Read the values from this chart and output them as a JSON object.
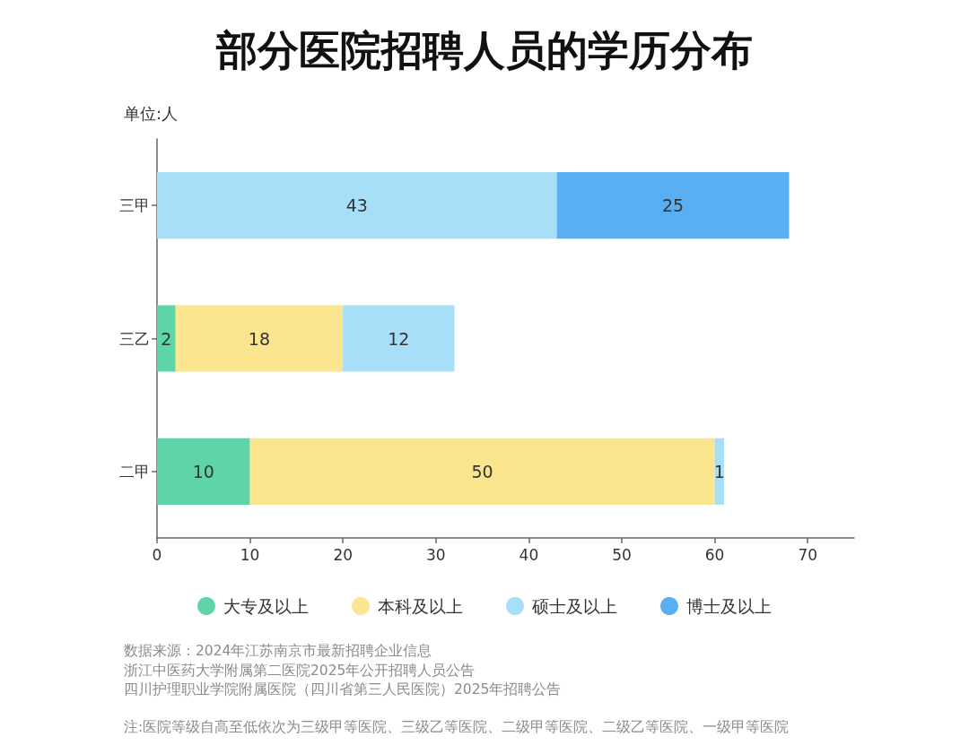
{
  "chart_data": {
    "type": "bar",
    "orientation": "horizontal",
    "stacked": true,
    "title": "部分医院招聘人员的学历分布",
    "categories": [
      "三甲",
      "三乙",
      "二甲"
    ],
    "series": [
      {
        "name": "大专及以上",
        "color": "#5dd5a8",
        "values": [
          null,
          2,
          10
        ]
      },
      {
        "name": "本科及以上",
        "color": "#fbe58f",
        "values": [
          null,
          18,
          50
        ]
      },
      {
        "name": "硕士及以上",
        "color": "#a8dff8",
        "values": [
          43,
          12,
          1
        ]
      },
      {
        "name": "博士及以上",
        "color": "#5aaef2",
        "values": [
          25,
          null,
          null
        ]
      }
    ],
    "xlim": [
      0,
      75
    ],
    "xticks": [
      0,
      10,
      20,
      30,
      40,
      50,
      60,
      70
    ],
    "data_labels": true,
    "legend": "bottom",
    "annotations": [
      "单位:人",
      "数据来源：2024年江苏南京市最新招聘企业信息",
      "浙江中医药大学附属第二医院2025年公开招聘人员公告",
      "四川护理职业学院附属医院（四川省第三人民医院）2025年招聘公告",
      "注:医院等级自高至低依次为三级甲等医院、三级乙等医院、二级甲等医院、二级乙等医院、一级甲等医院"
    ]
  }
}
